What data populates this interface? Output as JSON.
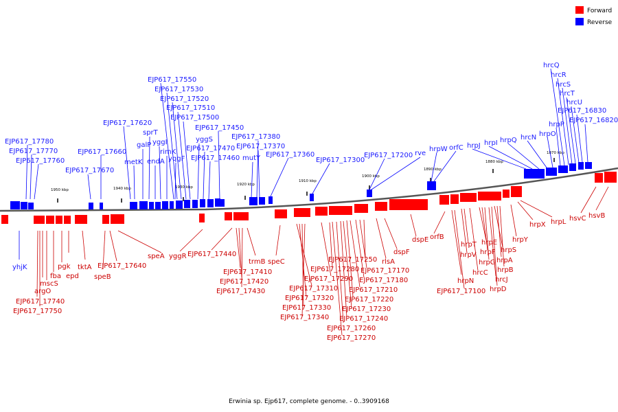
{
  "legend": {
    "forward_label": "Forward",
    "reverse_label": "Reverse",
    "forward_color": "#ff0000",
    "reverse_color": "#0000ff"
  },
  "caption": "Erwinia sp. Ejp617, complete genome. - 0..3909168",
  "ticks": [
    "1950 kbp",
    "1940 kbp",
    "1930 kbp",
    "1920 kbp",
    "1910 kbp",
    "1900 kbp",
    "1890 kbp",
    "1880 kbp",
    "1870 kbp"
  ],
  "reverse_labels": [
    "EJP617_17780",
    "EJP617_17770",
    "EJP617_17760",
    "EJP617_17670",
    "EJP617_17660",
    "EJP617_17620",
    "metK",
    "galP",
    "sprT",
    "endA",
    "yggI",
    "rimK",
    "yqgF",
    "EJP617_17550",
    "EJP617_17530",
    "EJP617_17520",
    "EJP617_17510",
    "EJP617_17500",
    "yggS",
    "EJP617_17470",
    "EJP617_17460",
    "EJP617_17450",
    "EJP617_17380",
    "EJP617_17370",
    "mutY",
    "EJP617_17360",
    "EJP617_17300",
    "EJP617_17200",
    "rve",
    "hrpW",
    "orfC",
    "hrpJ",
    "hrpI",
    "hrpQ",
    "hrcN",
    "hrpO",
    "hrpP",
    "hrcQ",
    "hrcR",
    "hrcS",
    "hrcT",
    "hrcU",
    "EJP617_16830",
    "EJP617_16820",
    "yhjK"
  ],
  "forward_labels": [
    "argO",
    "mscS",
    "fba",
    "pgk",
    "epd",
    "tktA",
    "EJP617_17740",
    "EJP617_17750",
    "speB",
    "EJP617_17640",
    "speA",
    "yggR",
    "EJP617_17440",
    "EJP617_17410",
    "EJP617_17420",
    "EJP617_17430",
    "trmB",
    "speC",
    "EJP617_17250",
    "EJP617_17280",
    "EJP617_17290",
    "EJP617_17310",
    "EJP617_17320",
    "EJP617_17330",
    "EJP617_17340",
    "rlsA",
    "EJP617_17170",
    "EJP617_17180",
    "EJP617_17210",
    "EJP617_17220",
    "EJP617_17230",
    "EJP617_17240",
    "EJP617_17260",
    "EJP617_17270",
    "dspF",
    "dspE",
    "orfB",
    "hrpT",
    "hrpV",
    "hrpN",
    "EJP617_17100",
    "hrcC",
    "hrpE",
    "hrpF",
    "hrpG",
    "hrcJ",
    "hrpD",
    "hrpS",
    "hrpA",
    "hrpB",
    "hrpY",
    "hrpX",
    "hrpL",
    "hsvC",
    "hsvB"
  ]
}
